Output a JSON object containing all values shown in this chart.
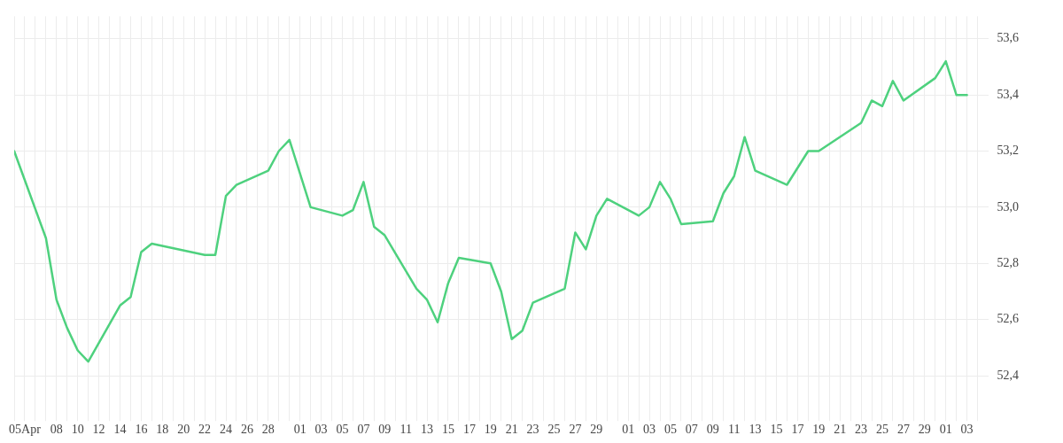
{
  "chart_data": {
    "type": "line",
    "x": [
      "--04-04",
      "--04-07",
      "--04-08",
      "--04-09",
      "--04-10",
      "--04-11",
      "--04-14",
      "--04-15",
      "--04-16",
      "--04-17",
      "--04-22",
      "--04-23",
      "--04-24",
      "--04-25",
      "--04-28",
      "--04-29",
      "--04-30",
      "--05-02",
      "--05-05",
      "--05-06",
      "--05-07",
      "--05-08",
      "--05-09",
      "--05-12",
      "--05-13",
      "--05-14",
      "--05-15",
      "--05-16",
      "--05-19",
      "--05-20",
      "--05-21",
      "--05-22",
      "--05-23",
      "--05-26",
      "--05-27",
      "--05-28",
      "--05-29",
      "--05-30",
      "--06-02",
      "--06-03",
      "--06-04",
      "--06-05",
      "--06-06",
      "--06-09",
      "--06-10",
      "--06-11",
      "--06-12",
      "--06-13",
      "--06-16",
      "--06-17",
      "--06-18",
      "--06-19",
      "--06-23",
      "--06-24",
      "--06-25",
      "--06-26",
      "--06-27",
      "--06-30",
      "--07-01",
      "--07-02",
      "--07-03"
    ],
    "series": [
      {
        "color": "#4ed17e",
        "values": [
          53.2,
          52.89,
          52.67,
          52.57,
          52.49,
          52.45,
          52.65,
          52.68,
          52.84,
          52.87,
          52.83,
          52.83,
          53.04,
          53.08,
          53.13,
          53.2,
          53.24,
          53.0,
          52.97,
          52.99,
          53.09,
          52.93,
          52.9,
          52.71,
          52.67,
          52.59,
          52.73,
          52.82,
          52.8,
          52.7,
          52.53,
          52.56,
          52.66,
          52.71,
          52.91,
          52.85,
          52.97,
          53.03,
          52.97,
          53.0,
          53.09,
          53.03,
          52.94,
          52.95,
          53.05,
          53.11,
          53.25,
          53.13,
          53.08,
          53.14,
          53.2,
          53.2,
          53.3,
          53.38,
          53.36,
          53.45,
          53.38,
          53.46,
          53.52,
          53.4,
          53.4
        ]
      }
    ],
    "xlim": [
      "--04-04",
      "--07-05"
    ],
    "xticks": [
      {
        "value": "--04-04",
        "label": null
      },
      {
        "value": "--04-05",
        "label": "05Apr"
      },
      {
        "value": "--04-06",
        "label": null
      },
      {
        "value": "--04-07",
        "label": null
      },
      {
        "value": "--04-08",
        "label": "08"
      },
      {
        "value": "--04-09",
        "label": null
      },
      {
        "value": "--04-10",
        "label": "10"
      },
      {
        "value": "--04-11",
        "label": null
      },
      {
        "value": "--04-12",
        "label": "12"
      },
      {
        "value": "--04-13",
        "label": null
      },
      {
        "value": "--04-14",
        "label": "14"
      },
      {
        "value": "--04-15",
        "label": null
      },
      {
        "value": "--04-16",
        "label": "16"
      },
      {
        "value": "--04-17",
        "label": null
      },
      {
        "value": "--04-18",
        "label": "18"
      },
      {
        "value": "--04-19",
        "label": null
      },
      {
        "value": "--04-20",
        "label": "20"
      },
      {
        "value": "--04-21",
        "label": null
      },
      {
        "value": "--04-22",
        "label": "22"
      },
      {
        "value": "--04-23",
        "label": null
      },
      {
        "value": "--04-24",
        "label": "24"
      },
      {
        "value": "--04-25",
        "label": null
      },
      {
        "value": "--04-26",
        "label": "26"
      },
      {
        "value": "--04-27",
        "label": null
      },
      {
        "value": "--04-28",
        "label": "28"
      },
      {
        "value": "--04-29",
        "label": null
      },
      {
        "value": "--04-30",
        "label": null
      },
      {
        "value": "--05-01",
        "label": "01"
      },
      {
        "value": "--05-02",
        "label": null
      },
      {
        "value": "--05-03",
        "label": "03"
      },
      {
        "value": "--05-04",
        "label": null
      },
      {
        "value": "--05-05",
        "label": "05"
      },
      {
        "value": "--05-06",
        "label": null
      },
      {
        "value": "--05-07",
        "label": "07"
      },
      {
        "value": "--05-08",
        "label": null
      },
      {
        "value": "--05-09",
        "label": "09"
      },
      {
        "value": "--05-10",
        "label": null
      },
      {
        "value": "--05-11",
        "label": "11"
      },
      {
        "value": "--05-12",
        "label": null
      },
      {
        "value": "--05-13",
        "label": "13"
      },
      {
        "value": "--05-14",
        "label": null
      },
      {
        "value": "--05-15",
        "label": "15"
      },
      {
        "value": "--05-16",
        "label": null
      },
      {
        "value": "--05-17",
        "label": "17"
      },
      {
        "value": "--05-18",
        "label": null
      },
      {
        "value": "--05-19",
        "label": "19"
      },
      {
        "value": "--05-20",
        "label": null
      },
      {
        "value": "--05-21",
        "label": "21"
      },
      {
        "value": "--05-22",
        "label": null
      },
      {
        "value": "--05-23",
        "label": "23"
      },
      {
        "value": "--05-24",
        "label": null
      },
      {
        "value": "--05-25",
        "label": "25"
      },
      {
        "value": "--05-26",
        "label": null
      },
      {
        "value": "--05-27",
        "label": "27"
      },
      {
        "value": "--05-28",
        "label": null
      },
      {
        "value": "--05-29",
        "label": "29"
      },
      {
        "value": "--05-30",
        "label": null
      },
      {
        "value": "--05-31",
        "label": null
      },
      {
        "value": "--06-01",
        "label": "01"
      },
      {
        "value": "--06-02",
        "label": null
      },
      {
        "value": "--06-03",
        "label": "03"
      },
      {
        "value": "--06-04",
        "label": null
      },
      {
        "value": "--06-05",
        "label": "05"
      },
      {
        "value": "--06-06",
        "label": null
      },
      {
        "value": "--06-07",
        "label": "07"
      },
      {
        "value": "--06-08",
        "label": null
      },
      {
        "value": "--06-09",
        "label": "09"
      },
      {
        "value": "--06-10",
        "label": null
      },
      {
        "value": "--06-11",
        "label": "11"
      },
      {
        "value": "--06-12",
        "label": null
      },
      {
        "value": "--06-13",
        "label": "13"
      },
      {
        "value": "--06-14",
        "label": null
      },
      {
        "value": "--06-15",
        "label": "15"
      },
      {
        "value": "--06-16",
        "label": null
      },
      {
        "value": "--06-17",
        "label": "17"
      },
      {
        "value": "--06-18",
        "label": null
      },
      {
        "value": "--06-19",
        "label": "19"
      },
      {
        "value": "--06-20",
        "label": null
      },
      {
        "value": "--06-21",
        "label": "21"
      },
      {
        "value": "--06-22",
        "label": null
      },
      {
        "value": "--06-23",
        "label": "23"
      },
      {
        "value": "--06-24",
        "label": null
      },
      {
        "value": "--06-25",
        "label": "25"
      },
      {
        "value": "--06-26",
        "label": null
      },
      {
        "value": "--06-27",
        "label": "27"
      },
      {
        "value": "--06-28",
        "label": null
      },
      {
        "value": "--06-29",
        "label": "29"
      },
      {
        "value": "--06-30",
        "label": null
      },
      {
        "value": "--07-01",
        "label": "01"
      },
      {
        "value": "--07-02",
        "label": null
      },
      {
        "value": "--07-03",
        "label": "03"
      },
      {
        "value": "--07-04",
        "label": null
      }
    ],
    "ylim": [
      52.27,
      53.68
    ],
    "yticks": [
      {
        "value": 52.4,
        "label": "52,4"
      },
      {
        "value": 52.6,
        "label": "52,6"
      },
      {
        "value": 52.8,
        "label": "52,8"
      },
      {
        "value": 53.0,
        "label": "53,0"
      },
      {
        "value": 53.2,
        "label": "53,2"
      },
      {
        "value": 53.4,
        "label": "53,4"
      },
      {
        "value": 53.6,
        "label": "53,6"
      }
    ],
    "grid": true,
    "legend": false,
    "marker": "none",
    "line_style": "solid"
  }
}
